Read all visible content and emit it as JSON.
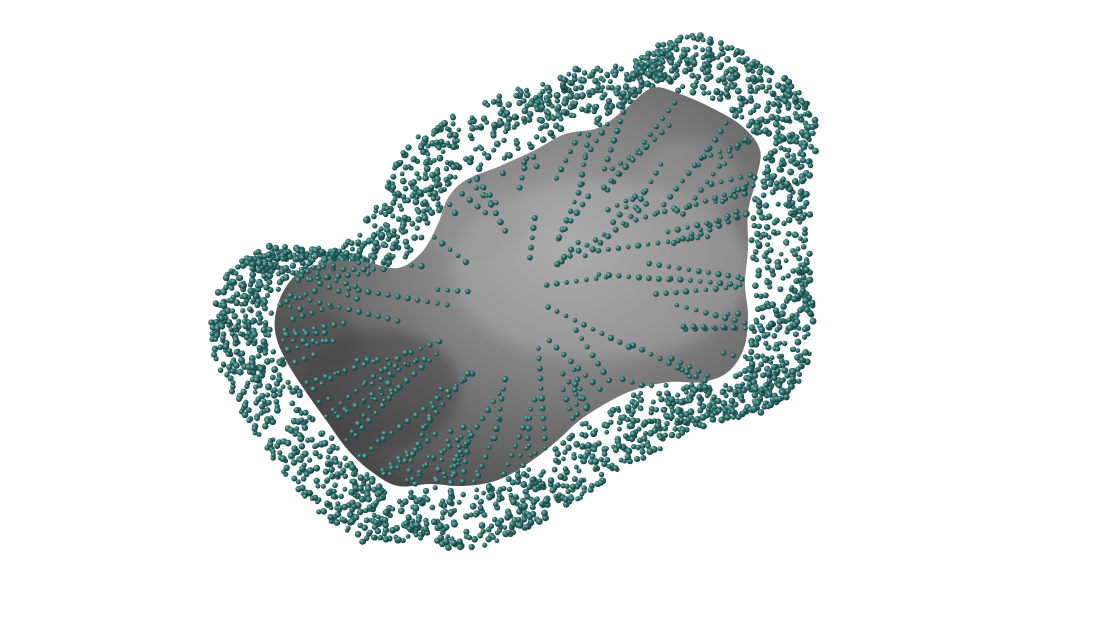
{
  "scene": {
    "background": "#ffffff",
    "surface_color": "#7a7a7a",
    "surface_highlight": "#a8a8a8",
    "surface_shadow": "#3c3c3c",
    "particle_color": "#2f6e6b",
    "particle_highlight": "#6fb3ae",
    "particle_shadow": "#143533",
    "objects": [
      "molecular-surface",
      "particle-cloud"
    ]
  }
}
